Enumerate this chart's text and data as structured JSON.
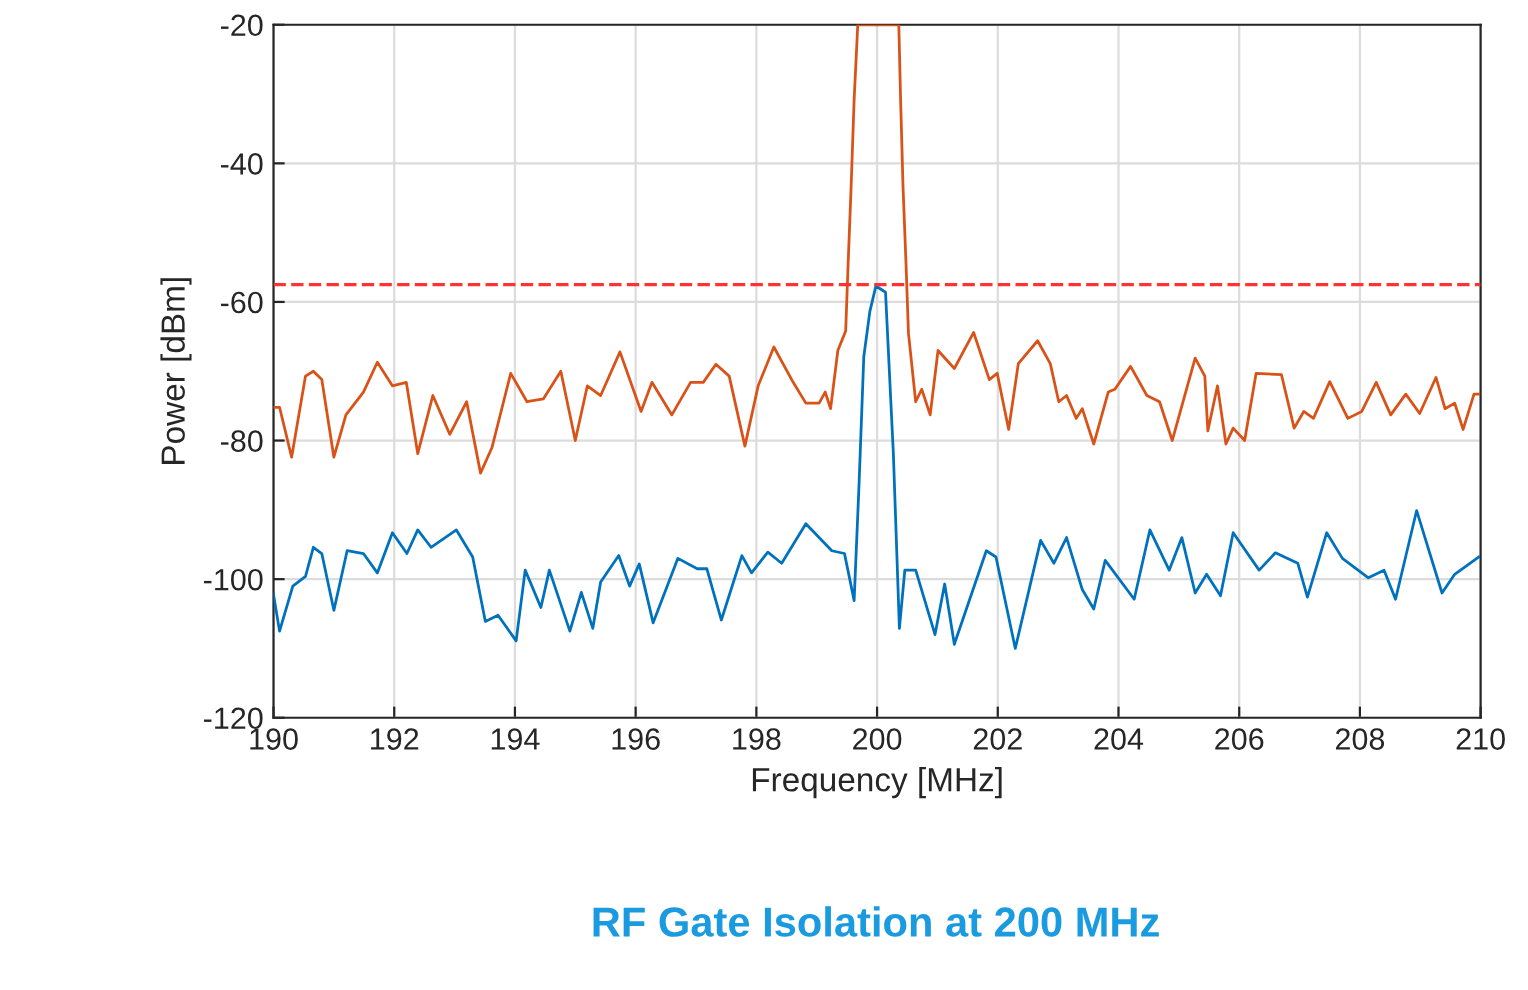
{
  "chart_data": {
    "type": "line",
    "title": "RF Gate Isolation at 200 MHz",
    "xlabel": "Frequency [MHz]",
    "ylabel": "Power [dBm]",
    "xlim": [
      190,
      210
    ],
    "xticks": [
      190,
      192,
      194,
      196,
      198,
      200,
      202,
      204,
      206,
      208,
      210
    ],
    "ylim": [
      -120,
      -20
    ],
    "yticks": [
      -120,
      -100,
      -80,
      -60,
      -40,
      -20
    ],
    "grid": true,
    "legend": false,
    "marker": "none",
    "line_style": "solid",
    "ref_lines": [
      {
        "axis": "y",
        "value": -57.5,
        "color": "#ff3333",
        "line_style": "dashed"
      }
    ],
    "series": [
      {
        "color": "#d95319",
        "x": [
          190.0,
          190.1,
          190.3,
          190.53,
          190.66,
          190.8,
          191.0,
          191.2,
          191.49,
          191.72,
          191.97,
          192.2,
          192.39,
          192.64,
          192.92,
          193.2,
          193.43,
          193.62,
          193.93,
          194.2,
          194.47,
          194.76,
          195.0,
          195.2,
          195.42,
          195.74,
          196.09,
          196.27,
          196.6,
          196.91,
          197.12,
          197.33,
          197.55,
          197.81,
          198.03,
          198.29,
          198.61,
          198.82,
          199.04,
          199.14,
          199.23,
          199.35,
          199.48,
          199.52,
          199.57,
          199.62,
          199.68,
          200.36,
          200.39,
          200.43,
          200.48,
          200.52,
          200.64,
          200.74,
          200.88,
          201.01,
          201.28,
          201.6,
          201.86,
          201.99,
          202.18,
          202.34,
          202.66,
          202.87,
          203.01,
          203.14,
          203.3,
          203.4,
          203.59,
          203.83,
          203.94,
          204.2,
          204.47,
          204.68,
          204.89,
          205.27,
          205.43,
          205.48,
          205.64,
          205.78,
          205.9,
          206.09,
          206.28,
          206.7,
          206.91,
          207.07,
          207.23,
          207.5,
          207.8,
          208.03,
          208.27,
          208.51,
          208.76,
          208.99,
          209.26,
          209.41,
          209.57,
          209.71,
          209.89,
          209.97
        ],
        "values": [
          -75.2,
          -75.2,
          -82.4,
          -70.7,
          -70.0,
          -71.2,
          -82.4,
          -76.3,
          -73.0,
          -68.7,
          -72.1,
          -71.6,
          -81.9,
          -73.5,
          -79.1,
          -74.4,
          -84.7,
          -81.0,
          -70.3,
          -74.4,
          -74.0,
          -70.0,
          -80.0,
          -72.1,
          -73.5,
          -67.2,
          -75.8,
          -71.6,
          -76.3,
          -71.6,
          -71.6,
          -69.0,
          -70.7,
          -80.8,
          -72.1,
          -66.5,
          -71.6,
          -74.6,
          -74.6,
          -73.0,
          -75.4,
          -67.0,
          -64.2,
          -54.6,
          -43.4,
          -30.8,
          -20,
          -20,
          -30.8,
          -43.4,
          -54.6,
          -64.5,
          -74.4,
          -72.6,
          -76.3,
          -67.0,
          -69.6,
          -64.4,
          -71.2,
          -70.3,
          -78.4,
          -68.9,
          -65.6,
          -68.9,
          -74.4,
          -73.5,
          -76.8,
          -75.4,
          -80.5,
          -73.0,
          -72.6,
          -69.3,
          -73.5,
          -74.4,
          -80.0,
          -68.1,
          -70.7,
          -78.6,
          -72.1,
          -80.5,
          -78.2,
          -80.0,
          -70.3,
          -70.5,
          -78.2,
          -75.8,
          -76.8,
          -71.5,
          -76.8,
          -75.8,
          -71.6,
          -76.3,
          -73.3,
          -76.1,
          -70.9,
          -75.4,
          -74.6,
          -78.4,
          -73.3,
          -73.3
        ]
      },
      {
        "color": "#0072bd",
        "x": [
          190.0,
          190.1,
          190.32,
          190.53,
          190.66,
          190.8,
          191.0,
          191.22,
          191.49,
          191.72,
          191.97,
          192.21,
          192.39,
          192.61,
          193.03,
          193.3,
          193.51,
          193.72,
          194.02,
          194.17,
          194.43,
          194.57,
          194.91,
          195.1,
          195.29,
          195.42,
          195.72,
          195.9,
          196.06,
          196.29,
          196.7,
          197.02,
          197.18,
          197.42,
          197.76,
          197.92,
          198.19,
          198.42,
          198.82,
          199.25,
          199.46,
          199.62,
          199.7,
          199.78,
          199.88,
          199.98,
          200.14,
          200.27,
          200.37,
          200.46,
          200.64,
          200.96,
          201.12,
          201.28,
          201.81,
          201.97,
          202.29,
          202.71,
          202.93,
          203.14,
          203.4,
          203.59,
          203.78,
          204.26,
          204.52,
          204.84,
          205.05,
          205.27,
          205.46,
          205.69,
          205.9,
          206.33,
          206.6,
          206.97,
          207.13,
          207.45,
          207.71,
          208.14,
          208.4,
          208.59,
          208.94,
          209.36,
          209.57,
          209.97
        ],
        "values": [
          -102.2,
          -107.5,
          -101.0,
          -99.6,
          -95.4,
          -96.3,
          -104.5,
          -95.9,
          -96.3,
          -99.1,
          -93.3,
          -96.3,
          -92.9,
          -95.4,
          -92.9,
          -96.8,
          -106.1,
          -105.2,
          -108.9,
          -98.7,
          -104.1,
          -98.7,
          -107.5,
          -101.9,
          -107.1,
          -100.4,
          -96.6,
          -101.0,
          -97.8,
          -106.3,
          -97.0,
          -98.5,
          -98.5,
          -105.9,
          -96.6,
          -99.1,
          -96.1,
          -97.7,
          -92.0,
          -95.9,
          -96.3,
          -103.1,
          -86.6,
          -67.9,
          -61.4,
          -57.7,
          -58.6,
          -81.9,
          -107.1,
          -98.7,
          -98.7,
          -108.0,
          -100.7,
          -109.4,
          -95.9,
          -96.8,
          -110.0,
          -94.4,
          -97.7,
          -94.0,
          -101.5,
          -104.3,
          -97.3,
          -102.9,
          -92.9,
          -98.7,
          -94.0,
          -102.0,
          -99.3,
          -102.4,
          -93.3,
          -98.7,
          -96.2,
          -97.7,
          -102.6,
          -93.3,
          -97.0,
          -99.8,
          -98.7,
          -102.9,
          -90.1,
          -102.0,
          -99.3,
          -96.8
        ]
      }
    ]
  }
}
